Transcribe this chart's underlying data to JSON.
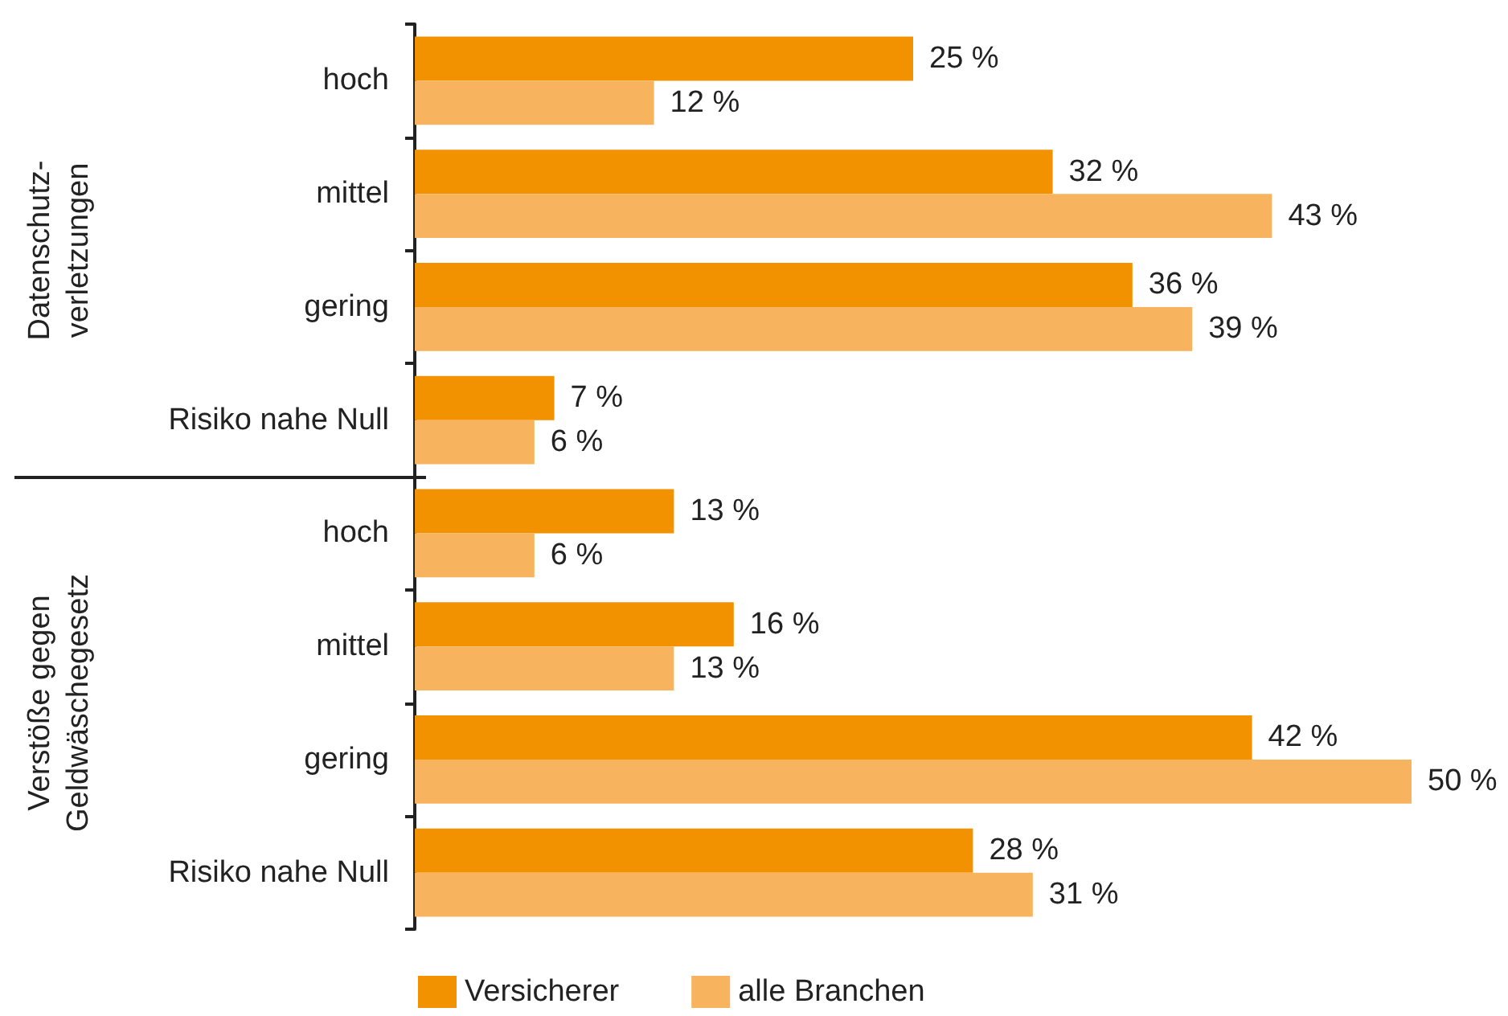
{
  "chart_data": {
    "type": "bar",
    "orientation": "horizontal",
    "categories": [
      "hoch",
      "mittel",
      "gering",
      "Risiko nahe Null",
      "hoch",
      "mittel",
      "gering",
      "Risiko nahe Null"
    ],
    "series": [
      {
        "name": "Versicherer",
        "color": "#f39200",
        "values": [
          25,
          32,
          36,
          7,
          13,
          16,
          42,
          28
        ],
        "value_labels": [
          "25 %",
          "32 %",
          "36 %",
          "7 %",
          "13 %",
          "16 %",
          "42 %",
          "28 %"
        ]
      },
      {
        "name": "alle Branchen",
        "color": "#f8b35e",
        "values": [
          12,
          43,
          39,
          6,
          6,
          13,
          50,
          31
        ],
        "value_labels": [
          "12 %",
          "43 %",
          "39 %",
          "6 %",
          "6 %",
          "13 %",
          "50 %",
          "31 %"
        ]
      }
    ],
    "annotations": [
      "Datenschutz-\nverletzungen",
      "Verstöße gegen\nGeldwäschegesetz"
    ],
    "legend": "bottom left"
  }
}
